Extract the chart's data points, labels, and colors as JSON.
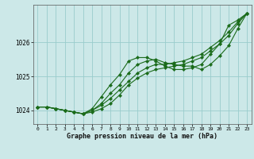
{
  "background_color": "#cce8e8",
  "plot_bg_color": "#cce8e8",
  "grid_color": "#99cccc",
  "line_color": "#1a6b1a",
  "marker_color": "#1a6b1a",
  "xlabel": "Graphe pression niveau de la mer (hPa)",
  "ylim": [
    1023.6,
    1027.1
  ],
  "xlim": [
    -0.5,
    23.5
  ],
  "yticks": [
    1024,
    1025,
    1026
  ],
  "xticks": [
    0,
    1,
    2,
    3,
    4,
    5,
    6,
    7,
    8,
    9,
    10,
    11,
    12,
    13,
    14,
    15,
    16,
    17,
    18,
    19,
    20,
    21,
    22,
    23
  ],
  "series": [
    [
      1024.1,
      1024.1,
      1024.05,
      1024.0,
      1023.95,
      1023.9,
      1023.95,
      1024.05,
      1024.2,
      1024.45,
      1024.75,
      1024.95,
      1025.1,
      1025.2,
      1025.25,
      1025.3,
      1025.35,
      1025.45,
      1025.55,
      1025.75,
      1025.95,
      1026.2,
      1026.55,
      1026.85
    ],
    [
      1024.1,
      1024.1,
      1024.05,
      1024.0,
      1023.95,
      1023.9,
      1024.0,
      1024.2,
      1024.5,
      1024.75,
      1025.1,
      1025.35,
      1025.45,
      1025.5,
      1025.4,
      1025.35,
      1025.3,
      1025.3,
      1025.2,
      1025.35,
      1025.6,
      1025.9,
      1026.4,
      1026.85
    ],
    [
      1024.1,
      1024.1,
      1024.05,
      1024.0,
      1023.95,
      1023.9,
      1024.05,
      1024.4,
      1024.75,
      1025.05,
      1025.45,
      1025.55,
      1025.55,
      1025.45,
      1025.3,
      1025.2,
      1025.2,
      1025.25,
      1025.35,
      1025.65,
      1025.95,
      1026.5,
      1026.65,
      1026.85
    ],
    [
      1024.1,
      1024.1,
      1024.05,
      1024.0,
      1023.95,
      1023.9,
      1024.0,
      1024.15,
      1024.35,
      1024.6,
      1024.85,
      1025.1,
      1025.25,
      1025.35,
      1025.35,
      1025.4,
      1025.45,
      1025.55,
      1025.65,
      1025.85,
      1026.05,
      1026.3,
      1026.6,
      1026.85
    ]
  ]
}
